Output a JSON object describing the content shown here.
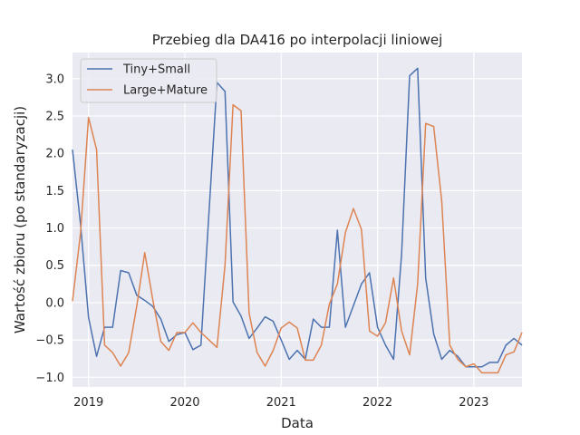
{
  "chart_data": {
    "type": "line",
    "title": "Przebieg dla DA416 po interpolacji liniowej",
    "xlabel": "Data",
    "ylabel": "Wartość zbioru (po standaryzacji)",
    "xlim": [
      "2018-11",
      "2023-07"
    ],
    "ylim": [
      -1.13,
      3.35
    ],
    "x_ticks": [
      {
        "date": "2019-01",
        "label": "2019"
      },
      {
        "date": "2020-01",
        "label": "2020"
      },
      {
        "date": "2021-01",
        "label": "2021"
      },
      {
        "date": "2022-01",
        "label": "2022"
      },
      {
        "date": "2023-01",
        "label": "2023"
      }
    ],
    "y_ticks": [
      {
        "value": -1.0,
        "label": "−1.0"
      },
      {
        "value": -0.5,
        "label": "−0.5"
      },
      {
        "value": 0.0,
        "label": "0.0"
      },
      {
        "value": 0.5,
        "label": "0.5"
      },
      {
        "value": 1.0,
        "label": "1.0"
      },
      {
        "value": 1.5,
        "label": "1.5"
      },
      {
        "value": 2.0,
        "label": "2.0"
      },
      {
        "value": 2.5,
        "label": "2.5"
      },
      {
        "value": 3.0,
        "label": "3.0"
      }
    ],
    "grid": true,
    "legend_position": "top-left",
    "x": [
      "2018-11",
      "2018-12",
      "2019-01",
      "2019-02",
      "2019-03",
      "2019-04",
      "2019-05",
      "2019-06",
      "2019-07",
      "2019-08",
      "2019-09",
      "2019-10",
      "2019-11",
      "2019-12",
      "2020-01",
      "2020-02",
      "2020-03",
      "2020-04",
      "2020-05",
      "2020-06",
      "2020-07",
      "2020-08",
      "2020-09",
      "2020-10",
      "2020-11",
      "2020-12",
      "2021-01",
      "2021-02",
      "2021-03",
      "2021-04",
      "2021-05",
      "2021-06",
      "2021-07",
      "2021-08",
      "2021-09",
      "2021-10",
      "2021-11",
      "2021-12",
      "2022-01",
      "2022-02",
      "2022-03",
      "2022-04",
      "2022-05",
      "2022-06",
      "2022-07",
      "2022-08",
      "2022-09",
      "2022-10",
      "2022-11",
      "2022-12",
      "2023-01",
      "2023-02",
      "2023-03",
      "2023-04",
      "2023-05",
      "2023-06",
      "2023-07"
    ],
    "series": [
      {
        "name": "Tiny+Small",
        "color": "#4c72b0",
        "values": [
          2.05,
          1.05,
          -0.2,
          -0.72,
          -0.33,
          -0.33,
          0.43,
          0.4,
          0.1,
          0.03,
          -0.05,
          -0.22,
          -0.52,
          -0.43,
          -0.4,
          -0.63,
          -0.57,
          1.2,
          2.95,
          2.83,
          0.01,
          -0.18,
          -0.48,
          -0.34,
          -0.19,
          -0.25,
          -0.5,
          -0.76,
          -0.64,
          -0.76,
          -0.22,
          -0.33,
          -0.33,
          0.97,
          -0.33,
          -0.04,
          0.25,
          0.4,
          -0.33,
          -0.57,
          -0.76,
          0.65,
          3.04,
          3.14,
          0.33,
          -0.42,
          -0.76,
          -0.64,
          -0.72,
          -0.86,
          -0.86,
          -0.86,
          -0.8,
          -0.8,
          -0.57,
          -0.48,
          -0.57
        ]
      },
      {
        "name": "Large+Mature",
        "color": "#dd8452",
        "values": [
          0.02,
          0.93,
          2.48,
          2.05,
          -0.57,
          -0.67,
          -0.85,
          -0.67,
          -0.05,
          0.67,
          0.04,
          -0.52,
          -0.64,
          -0.4,
          -0.4,
          -0.27,
          -0.4,
          -0.5,
          -0.6,
          0.5,
          2.65,
          2.57,
          -0.14,
          -0.67,
          -0.85,
          -0.64,
          -0.34,
          -0.26,
          -0.34,
          -0.77,
          -0.77,
          -0.57,
          -0.02,
          0.25,
          0.94,
          1.26,
          0.98,
          -0.38,
          -0.45,
          -0.27,
          0.33,
          -0.38,
          -0.7,
          0.25,
          2.4,
          2.36,
          1.36,
          -0.57,
          -0.76,
          -0.86,
          -0.82,
          -0.94,
          -0.94,
          -0.94,
          -0.7,
          -0.66,
          -0.4
        ]
      }
    ]
  }
}
